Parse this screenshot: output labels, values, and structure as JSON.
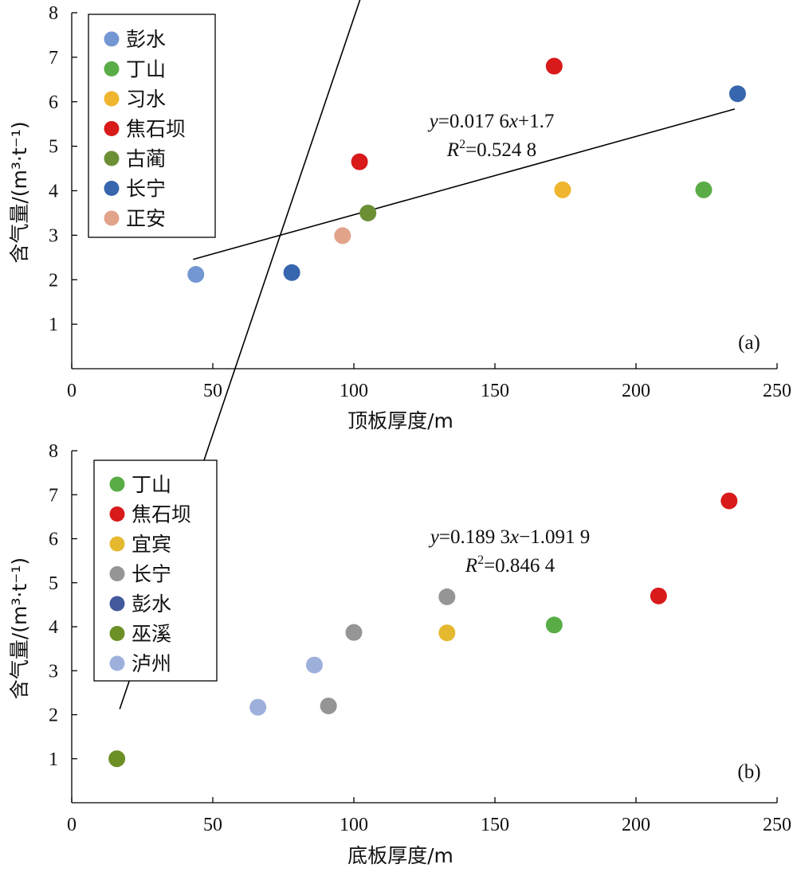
{
  "chart_data": [
    {
      "type": "scatter",
      "panel_label": "(a)",
      "xlabel": "顶板厚度/m",
      "ylabel": "含气量/(m³·t⁻¹)",
      "xlim": [
        0,
        250
      ],
      "ylim": [
        0,
        8
      ],
      "xticks": [
        "0",
        "50",
        "100",
        "150",
        "200",
        "250"
      ],
      "yticks": [
        "1",
        "2",
        "3",
        "4",
        "5",
        "6",
        "7",
        "8"
      ],
      "legend_position": "top-left",
      "series": [
        {
          "name": "彭水",
          "color": "#7397d2",
          "points": [
            [
              44,
              2.12
            ]
          ]
        },
        {
          "name": "丁山",
          "color": "#59ac46",
          "points": [
            [
              224,
              4.02
            ]
          ]
        },
        {
          "name": "习水",
          "color": "#efb52e",
          "points": [
            [
              174,
              4.02
            ]
          ]
        },
        {
          "name": "焦石坝",
          "color": "#d81a1a",
          "points": [
            [
              102,
              4.65
            ],
            [
              171,
              6.8
            ]
          ]
        },
        {
          "name": "古蔺",
          "color": "#6c8f36",
          "points": [
            [
              105,
              3.5
            ]
          ]
        },
        {
          "name": "长宁",
          "color": "#3766ae",
          "points": [
            [
              78,
              2.16
            ],
            [
              236,
              6.18
            ]
          ]
        },
        {
          "name": "正安",
          "color": "#e1a38a",
          "points": [
            [
              96,
              2.99
            ]
          ]
        }
      ],
      "trendline": {
        "slope": 0.0176,
        "intercept": 1.7,
        "x_range": [
          43,
          235
        ]
      },
      "equation": {
        "y_label": "y",
        "eq_rest": "=0.017 6",
        "x_var": "x",
        "eq_tail": "+1.7",
        "r_label": "R",
        "r_sup": "2",
        "r_value": "=0.524 8"
      }
    },
    {
      "type": "scatter",
      "panel_label": "(b)",
      "xlabel": "底板厚度/m",
      "ylabel": "含气量/(m³·t⁻¹)",
      "xlim": [
        0,
        250
      ],
      "ylim": [
        0,
        8
      ],
      "xticks": [
        "0",
        "50",
        "100",
        "150",
        "200",
        "250"
      ],
      "yticks": [
        "1",
        "2",
        "3",
        "4",
        "5",
        "6",
        "7",
        "8"
      ],
      "legend_position": "top-left",
      "series": [
        {
          "name": "丁山",
          "color": "#59ac46",
          "points": [
            [
              171,
              4.04
            ]
          ]
        },
        {
          "name": "焦石坝",
          "color": "#d81a1a",
          "points": [
            [
              208,
              4.7
            ],
            [
              233,
              6.86
            ]
          ]
        },
        {
          "name": "宜宾",
          "color": "#e5b92f",
          "points": [
            [
              133,
              3.86
            ]
          ]
        },
        {
          "name": "长宁",
          "color": "#959595",
          "points": [
            [
              100,
              3.87
            ],
            [
              91,
              2.2
            ],
            [
              133,
              4.68
            ]
          ]
        },
        {
          "name": "彭水",
          "color": "#42599b",
          "points": []
        },
        {
          "name": "巫溪",
          "color": "#6c8f26",
          "points": [
            [
              16,
              1.0
            ]
          ]
        },
        {
          "name": "泸州",
          "color": "#9cb0db",
          "points": [
            [
              66,
              2.17
            ],
            [
              86,
              3.13
            ]
          ]
        }
      ],
      "trendline": {
        "slope": 0.1893,
        "intercept": -1.0919,
        "x_range": [
          17,
          235
        ]
      },
      "equation": {
        "y_label": "y",
        "eq_rest": "=0.189 3",
        "x_var": "x",
        "eq_tail": "−1.091 9",
        "r_label": "R",
        "r_sup": "2",
        "r_value": "=0.846 4"
      }
    }
  ]
}
